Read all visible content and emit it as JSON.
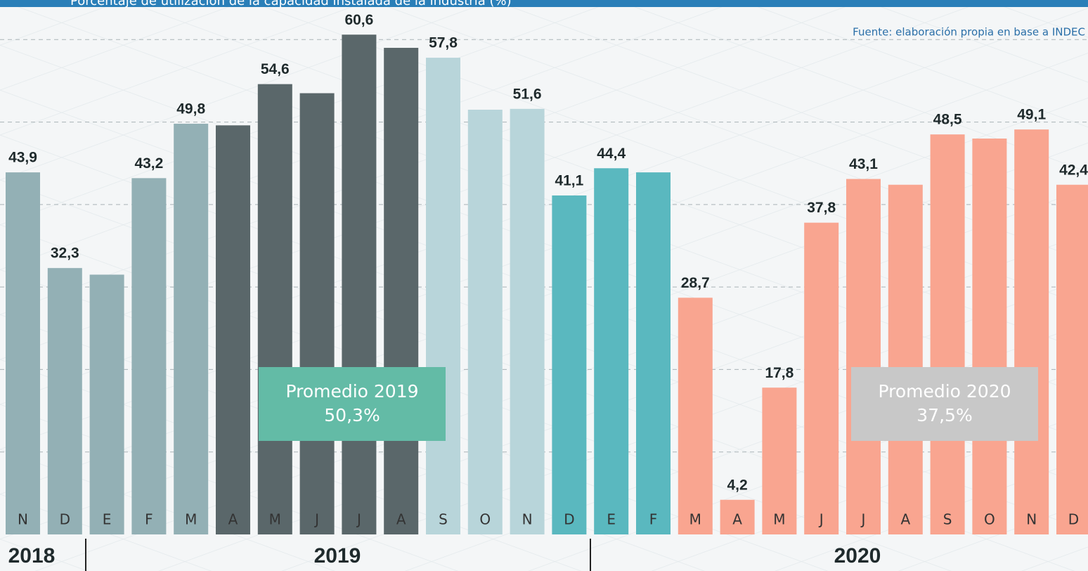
{
  "chart_data": {
    "type": "bar",
    "title": "Porcentaje de utilización de la capacidad instalada de la industria (%)",
    "source": "Fuente: elaboración propia en base a INDEC",
    "categories": [
      "N",
      "D",
      "E",
      "F",
      "M",
      "A",
      "M",
      "J",
      "J",
      "A",
      "S",
      "O",
      "N",
      "D",
      "E",
      "F",
      "M",
      "A",
      "M",
      "J",
      "J",
      "A",
      "S",
      "O",
      "N",
      "D"
    ],
    "values": [
      43.9,
      32.3,
      31.5,
      43.2,
      49.8,
      49.6,
      54.6,
      53.5,
      60.6,
      59.0,
      57.8,
      51.5,
      51.6,
      41.1,
      44.4,
      43.9,
      28.7,
      4.2,
      17.8,
      37.8,
      43.1,
      42.4,
      48.5,
      48.0,
      49.1,
      42.4
    ],
    "value_labels": [
      "43,9",
      "32,3",
      null,
      "43,2",
      "49,8",
      null,
      "54,6",
      null,
      "60,6",
      null,
      "57,8",
      null,
      "51,6",
      "41,1",
      "44,4",
      null,
      "28,7",
      "4,2",
      "17,8",
      "37,8",
      "43,1",
      null,
      "48,5",
      null,
      "49,1",
      "42,4"
    ],
    "colors": [
      "#93b0b5",
      "#93b0b5",
      "#93b0b5",
      "#93b0b5",
      "#93b0b5",
      "#5a676a",
      "#5a676a",
      "#5a676a",
      "#5a676a",
      "#5a676a",
      "#b8d5da",
      "#b8d5da",
      "#b8d5da",
      "#5ab8bf",
      "#5ab8bf",
      "#5ab8bf",
      "#f9a590",
      "#f9a590",
      "#f9a590",
      "#f9a590",
      "#f9a590",
      "#f9a590",
      "#f9a590",
      "#f9a590",
      "#f9a590",
      "#f9a590"
    ],
    "ylim": [
      0,
      64.8
    ],
    "yticks": [
      10,
      20,
      30,
      40,
      50,
      60
    ],
    "grid": true,
    "year_labels": [
      "2018",
      "2019",
      "2020"
    ],
    "annotations": [
      {
        "lines": [
          "Promedio 2019",
          "50,3%"
        ],
        "color": "#63bba6"
      },
      {
        "lines": [
          "Promedio 2020",
          "37,5%"
        ],
        "color": "#c8c8c8"
      }
    ]
  }
}
